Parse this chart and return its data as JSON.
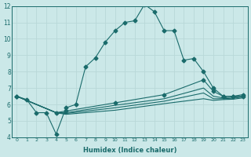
{
  "xlabel": "Humidex (Indice chaleur)",
  "xlim": [
    -0.5,
    23.5
  ],
  "ylim": [
    4,
    12
  ],
  "yticks": [
    4,
    5,
    6,
    7,
    8,
    9,
    10,
    11,
    12
  ],
  "xticks": [
    0,
    1,
    2,
    3,
    4,
    5,
    6,
    7,
    8,
    9,
    10,
    11,
    12,
    13,
    14,
    15,
    16,
    17,
    18,
    19,
    20,
    21,
    22,
    23
  ],
  "bg_color": "#cbe8e8",
  "line_color": "#1a6b6b",
  "grid_color": "#b8d8d8",
  "lines": [
    {
      "comment": "main peaked line with markers",
      "x": [
        0,
        1,
        2,
        3,
        4,
        5,
        6,
        7,
        8,
        9,
        10,
        11,
        12,
        13,
        14,
        15,
        16,
        17,
        18,
        19,
        20,
        21,
        22,
        23
      ],
      "y": [
        6.5,
        6.3,
        5.5,
        5.5,
        4.2,
        5.8,
        6.0,
        8.3,
        8.85,
        9.8,
        10.5,
        11.0,
        11.1,
        12.1,
        11.65,
        10.5,
        10.5,
        8.7,
        8.8,
        8.0,
        7.0,
        6.5,
        6.5,
        6.5
      ],
      "marker": "D",
      "markersize": 2.5
    },
    {
      "comment": "flat line 1 - highest of flat lines",
      "x": [
        0,
        4,
        5,
        10,
        15,
        19,
        20,
        21,
        22,
        23
      ],
      "y": [
        6.5,
        5.5,
        5.6,
        6.1,
        6.6,
        7.5,
        6.8,
        6.5,
        6.5,
        6.6
      ],
      "marker": "D",
      "markersize": 2.5
    },
    {
      "comment": "flat line 2",
      "x": [
        0,
        4,
        5,
        10,
        15,
        19,
        20,
        21,
        22,
        23
      ],
      "y": [
        6.5,
        5.5,
        5.5,
        5.95,
        6.35,
        7.0,
        6.5,
        6.4,
        6.45,
        6.5
      ],
      "marker": null,
      "markersize": 0
    },
    {
      "comment": "flat line 3",
      "x": [
        0,
        4,
        5,
        10,
        15,
        19,
        20,
        21,
        22,
        23
      ],
      "y": [
        6.5,
        5.5,
        5.45,
        5.8,
        6.2,
        6.7,
        6.35,
        6.35,
        6.38,
        6.45
      ],
      "marker": null,
      "markersize": 0
    },
    {
      "comment": "flat line 4 - lowest",
      "x": [
        0,
        4,
        5,
        10,
        15,
        19,
        20,
        21,
        22,
        23
      ],
      "y": [
        6.5,
        5.5,
        5.4,
        5.65,
        6.05,
        6.35,
        6.25,
        6.3,
        6.32,
        6.4
      ],
      "marker": null,
      "markersize": 0
    }
  ]
}
